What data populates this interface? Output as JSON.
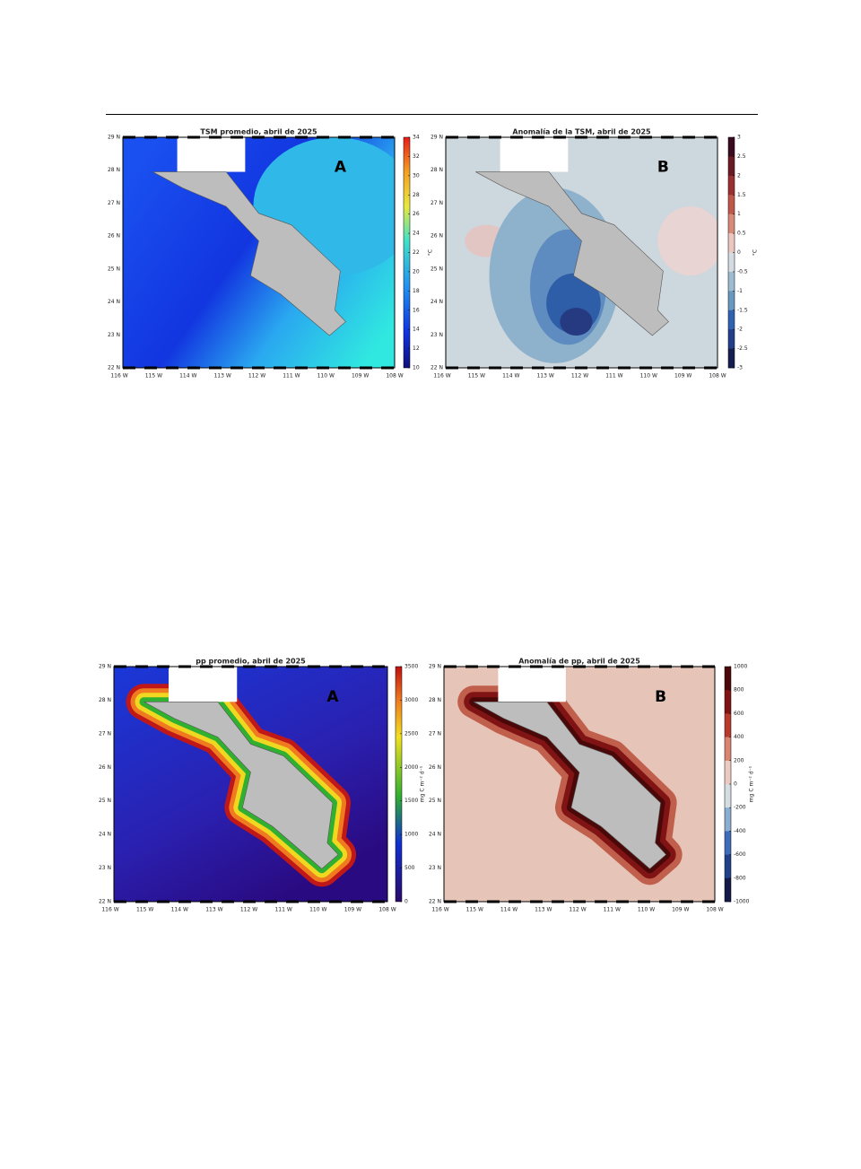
{
  "figures": [
    {
      "panels": [
        {
          "title": "TSM promedio, abril de 2025",
          "label": "A",
          "x_ticks": [
            "116 W",
            "115 W",
            "114 W",
            "113 W",
            "112 W",
            "111 W",
            "110 W",
            "109 W",
            "108 W"
          ],
          "y_ticks": [
            "29 N",
            "28 N",
            "27 N",
            "26 N",
            "25 N",
            "24 N",
            "23 N",
            "22 N"
          ],
          "colorbar": {
            "ticks": [
              34,
              32,
              30,
              28,
              26,
              24,
              22,
              20,
              18,
              16,
              14,
              12,
              10
            ],
            "unit": "°C"
          }
        },
        {
          "title": "Anomalía de la TSM, abril de 2025",
          "label": "B",
          "x_ticks": [
            "116 W",
            "115 W",
            "114 W",
            "113 W",
            "112 W",
            "111 W",
            "110 W",
            "109 W",
            "108 W"
          ],
          "y_ticks": [
            "29 N",
            "28 N",
            "27 N",
            "26 N",
            "25 N",
            "24 N",
            "23 N",
            "22 N"
          ],
          "colorbar": {
            "ticks": [
              3,
              2.5,
              2,
              1.5,
              1,
              0.5,
              0,
              -0.5,
              -1,
              -1.5,
              -2,
              -2.5,
              -3
            ],
            "unit": "°C"
          }
        }
      ]
    },
    {
      "panels": [
        {
          "title": "pp promedio, abril de 2025",
          "label": "A",
          "x_ticks": [
            "116 W",
            "115 W",
            "114 W",
            "113 W",
            "112 W",
            "111 W",
            "110 W",
            "109 W",
            "108 W"
          ],
          "y_ticks": [
            "29 N",
            "28 N",
            "27 N",
            "26 N",
            "25 N",
            "24 N",
            "23 N",
            "22 N"
          ],
          "colorbar": {
            "ticks": [
              3500,
              3000,
              2500,
              2000,
              1500,
              1000,
              500,
              0
            ],
            "unit": "mg C m⁻² d⁻¹"
          }
        },
        {
          "title": "Anomalía de pp, abril de 2025",
          "label": "B",
          "x_ticks": [
            "116 W",
            "115 W",
            "114 W",
            "113 W",
            "112 W",
            "111 W",
            "110 W",
            "109 W",
            "108 W"
          ],
          "y_ticks": [
            "29 N",
            "28 N",
            "27 N",
            "26 N",
            "25 N",
            "24 N",
            "23 N",
            "22 N"
          ],
          "colorbar": {
            "ticks": [
              1000,
              800,
              600,
              400,
              200,
              0,
              -200,
              -400,
              -600,
              -800,
              -1000
            ],
            "unit": "mg C m⁻² d⁻¹"
          }
        }
      ]
    }
  ]
}
